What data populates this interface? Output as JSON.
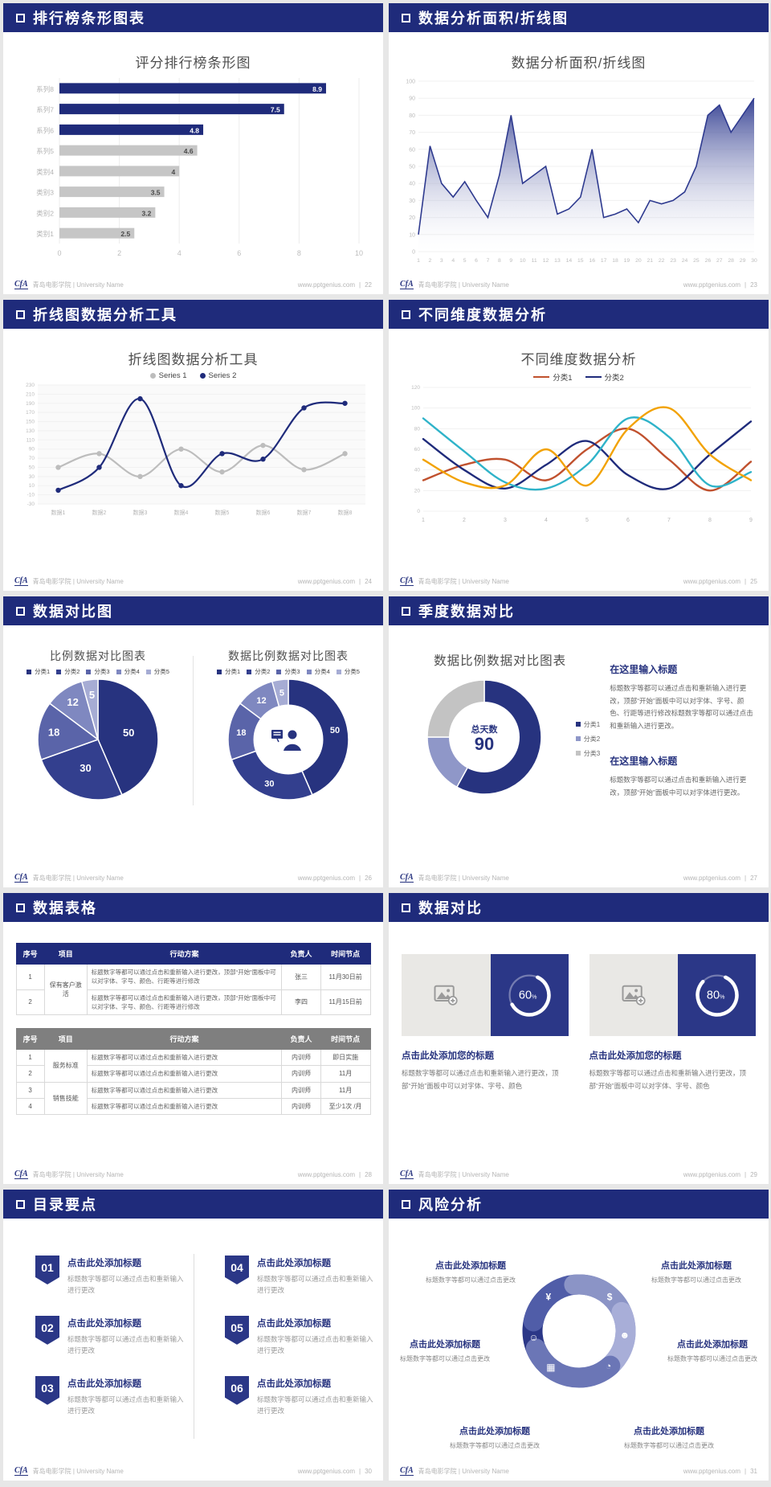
{
  "colors": {
    "accent": "#1f2b7b",
    "bar_gray": "#c6c6c6",
    "table_gray_header": "#7f7f7f"
  },
  "footer": {
    "logo": "CfA",
    "brand": "青岛电影学院 | University Name",
    "site": "www.pptgenius.com",
    "sep": "|"
  },
  "slides": [
    {
      "header": "排行榜条形图表",
      "page": "22"
    },
    {
      "header": "数据分析面积/折线图",
      "page": "23"
    },
    {
      "header": "折线图数据分析工具",
      "page": "24"
    },
    {
      "header": "不同维度数据分析",
      "page": "25"
    },
    {
      "header": "数据对比图",
      "page": "26"
    },
    {
      "header": "季度数据对比",
      "page": "27"
    },
    {
      "header": "数据表格",
      "page": "28"
    },
    {
      "header": "数据对比",
      "page": "29"
    },
    {
      "header": "目录要点",
      "page": "30"
    },
    {
      "header": "风险分析",
      "page": "31"
    }
  ],
  "chart_data": [
    {
      "id": "ranking-bar",
      "type": "bar",
      "orientation": "horizontal",
      "title": "评分排行榜条形图",
      "categories": [
        "系列8",
        "系列7",
        "系列6",
        "系列5",
        "类别4",
        "类别3",
        "类别2",
        "类别1"
      ],
      "values": [
        8.9,
        7.5,
        4.8,
        4.6,
        4,
        3.5,
        3.2,
        2.5
      ],
      "bar_colors": [
        "#1f2b7b",
        "#1f2b7b",
        "#1f2b7b",
        "#c6c6c6",
        "#c6c6c6",
        "#c6c6c6",
        "#c6c6c6",
        "#c6c6c6"
      ],
      "label_colors": [
        "#ffffff",
        "#ffffff",
        "#ffffff",
        "#4a4a4a",
        "#4a4a4a",
        "#4a4a4a",
        "#4a4a4a",
        "#4a4a4a"
      ],
      "xlim": [
        0,
        10
      ],
      "xticks": [
        0,
        2,
        4,
        6,
        8,
        10
      ],
      "grid": true
    },
    {
      "id": "area-line",
      "type": "area",
      "title": "数据分析面积/折线图",
      "x": [
        1,
        2,
        3,
        4,
        5,
        6,
        7,
        8,
        9,
        10,
        11,
        12,
        13,
        14,
        15,
        16,
        17,
        18,
        19,
        20,
        21,
        22,
        23,
        24,
        25,
        26,
        27,
        28,
        29,
        30
      ],
      "values": [
        10,
        62,
        40,
        32,
        41,
        30,
        20,
        45,
        80,
        40,
        45,
        50,
        22,
        25,
        32,
        60,
        20,
        22,
        25,
        17,
        30,
        28,
        30,
        35,
        50,
        80,
        86,
        70,
        80,
        90
      ],
      "ylim": [
        0,
        100
      ],
      "ytick_step": 10,
      "line_color": "#2e3a8f",
      "grid": true
    },
    {
      "id": "line-tool",
      "type": "line",
      "title": "折线图数据分析工具",
      "categories": [
        "数据1",
        "数据2",
        "数据3",
        "数据4",
        "数据5",
        "数据6",
        "数据7",
        "数据8"
      ],
      "series": [
        {
          "name": "Series 1",
          "color": "#bdbdbd",
          "values": [
            50,
            80,
            30,
            90,
            40,
            98,
            45,
            80
          ]
        },
        {
          "name": "Series 2",
          "color": "#1f2b7b",
          "values": [
            0,
            50,
            200,
            10,
            80,
            68,
            180,
            190
          ]
        }
      ],
      "ylim": [
        -30,
        230
      ],
      "ytick_step": 20,
      "markers": true,
      "smooth": true,
      "plot_bg": "#fafafa",
      "legend_position": "top"
    },
    {
      "id": "dims-line",
      "type": "line",
      "title": "不同维度数据分析",
      "x": [
        1,
        2,
        3,
        4,
        5,
        6,
        7,
        8,
        9
      ],
      "series": [
        {
          "name": "分类1",
          "color": "#c0512e",
          "values": [
            30,
            45,
            50,
            30,
            60,
            80,
            50,
            20,
            48
          ]
        },
        {
          "name": "分类2",
          "color": "#1f2b7b",
          "values": [
            70,
            40,
            22,
            45,
            68,
            35,
            22,
            55,
            87
          ]
        },
        {
          "name": "",
          "color": "#2fb3c9",
          "values": [
            90,
            58,
            28,
            22,
            45,
            90,
            72,
            25,
            38
          ]
        },
        {
          "name": "",
          "color": "#f2a202",
          "values": [
            50,
            28,
            25,
            60,
            25,
            80,
            100,
            55,
            30
          ]
        }
      ],
      "ylim": [
        0,
        120
      ],
      "ytick_step": 20,
      "smooth": true,
      "lw": 2.4,
      "legend_position": "top"
    },
    {
      "id": "pie-compare",
      "type": "pie",
      "title": "比例数据对比图表",
      "labels": [
        "分类1",
        "分类2",
        "分类3",
        "分类4",
        "分类5"
      ],
      "values": [
        50,
        30,
        18,
        12,
        5
      ],
      "colors": [
        "#27337f",
        "#333f8e",
        "#5a64a9",
        "#7f88c0",
        "#a6acd4"
      ],
      "label_size": 13
    },
    {
      "id": "donut-compare",
      "type": "pie",
      "inner": 0.58,
      "title": "数据比例数据对比图表",
      "labels": [
        "分类1",
        "分类2",
        "分类3",
        "分类4",
        "分类5"
      ],
      "values": [
        50,
        30,
        18,
        12,
        5
      ],
      "colors": [
        "#27337f",
        "#333f8e",
        "#5a64a9",
        "#7f88c0",
        "#a6acd4"
      ],
      "label_size": 11,
      "center_icon": "presenter-icon"
    },
    {
      "id": "donut-days",
      "type": "pie",
      "inner": 0.62,
      "title": "数据比例数据对比图表",
      "show_values": false,
      "labels": [
        "分类1",
        "分类2",
        "分类3"
      ],
      "values": [
        58,
        17,
        25
      ],
      "colors": [
        "#27337f",
        "#8f97c8",
        "#c3c3c3"
      ],
      "center_label": "总天数",
      "center_value": "90"
    }
  ],
  "slide6": {
    "blocks": [
      {
        "heading": "在这里输入标题",
        "body": "标题数字等都可以通过点击和重新输入进行更改，顶部“开始”面板中可以对字体、字号、颜色、行距等进行修改标题数字等都可以通过点击和重新输入进行更改。"
      },
      {
        "heading": "在这里输入标题",
        "body": "标题数字等都可以通过点击和重新输入进行更改，顶部“开始”面板中可以对字体进行更改。"
      }
    ]
  },
  "slide7": {
    "table1": {
      "headers": [
        "序号",
        "项目",
        "行动方案",
        "负责人",
        "时间节点"
      ],
      "project": "保有客户激活",
      "plan": "标题数字等都可以通过点击和重新输入进行更改，顶部“开始”面板中可以对字体、字号、颜色、行距等进行修改",
      "rows": [
        {
          "no": "1",
          "owner": "张三",
          "time": "11月30日前"
        },
        {
          "no": "2",
          "owner": "李四",
          "time": "11月15日前"
        }
      ]
    },
    "table2": {
      "headers": [
        "序号",
        "项目",
        "行动方案",
        "负责人",
        "时间节点"
      ],
      "projects": [
        "服务标准",
        "销售技能"
      ],
      "plan": "标题数字等都可以通过点击和重新输入进行更改",
      "rows": [
        {
          "no": "1",
          "owner": "内训师",
          "time": "即日实施"
        },
        {
          "no": "2",
          "owner": "内训师",
          "time": "11月"
        },
        {
          "no": "3",
          "owner": "内训师",
          "time": "11月"
        },
        {
          "no": "4",
          "owner": "内训师",
          "time": "至少1次 /月"
        }
      ]
    }
  },
  "slide8": {
    "heading": "点击此处添加您的标题",
    "body": "标题数字等都可以通过点击和重新输入进行更改，顶部“开始”面板中可以对字体、字号、颜色",
    "cards": [
      {
        "percent": 60
      },
      {
        "percent": 80
      }
    ],
    "placeholder_icon": "image-placeholder-icon"
  },
  "slide9": {
    "items": [
      {
        "num": "01",
        "title": "点击此处添加标题",
        "caption": "标题数字等都可以通过点击和重新输入进行更改"
      },
      {
        "num": "02",
        "title": "点击此处添加标题",
        "caption": "标题数字等都可以通过点击和重新输入进行更改"
      },
      {
        "num": "03",
        "title": "点击此处添加标题",
        "caption": "标题数字等都可以通过点击和重新输入进行更改"
      },
      {
        "num": "04",
        "title": "点击此处添加标题",
        "caption": "标题数字等都可以通过点击和重新输入进行更改"
      },
      {
        "num": "05",
        "title": "点击此处添加标题",
        "caption": "标题数字等都可以通过点击和重新输入进行更改"
      },
      {
        "num": "06",
        "title": "点击此处添加标题",
        "caption": "标题数字等都可以通过点击和重新输入进行更改"
      }
    ]
  },
  "slide10": {
    "icons": [
      "money-bag-icon",
      "coins-icon",
      "people-icon",
      "pie-chart-icon",
      "monitor-icon",
      "presenter-icon"
    ],
    "labels": [
      {
        "title": "点击此处添加标题",
        "caption": "标题数字等都可以通过点击更改"
      },
      {
        "title": "点击此处添加标题",
        "caption": "标题数字等都可以通过点击更改"
      },
      {
        "title": "点击此处添加标题",
        "caption": "标题数字等都可以通过点击更改"
      },
      {
        "title": "点击此处添加标题",
        "caption": "标题数字等都可以通过点击更改"
      },
      {
        "title": "点击此处添加标题",
        "caption": "标题数字等都可以通过点击更改"
      },
      {
        "title": "点击此处添加标题",
        "caption": "标题数字等都可以通过点击更改"
      }
    ]
  }
}
